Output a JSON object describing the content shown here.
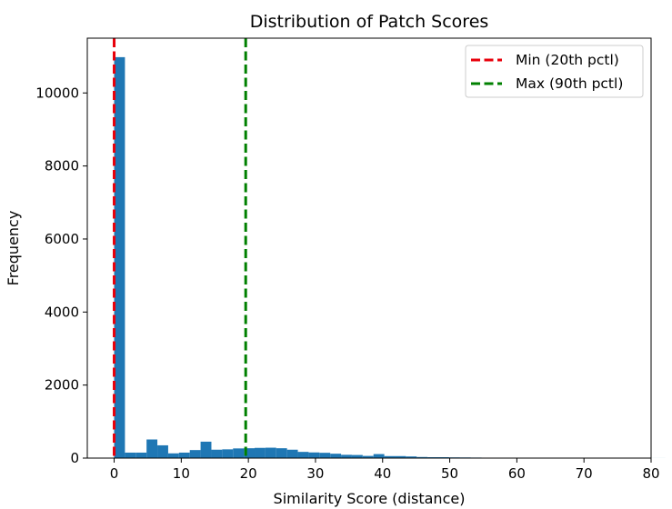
{
  "chart_data": {
    "type": "histogram",
    "title": "Distribution of Patch Scores",
    "xlabel": "Similarity Score (distance)",
    "ylabel": "Frequency",
    "xlim": [
      -4,
      80
    ],
    "ylim": [
      0,
      11500
    ],
    "xticks": [
      0,
      10,
      20,
      30,
      40,
      50,
      60,
      70,
      80
    ],
    "yticks": [
      0,
      2000,
      4000,
      6000,
      8000,
      10000
    ],
    "bin_width": 1.61,
    "bins_start": 0,
    "bar_color": "#1f77b4",
    "counts": [
      10980,
      150,
      150,
      510,
      350,
      130,
      150,
      220,
      450,
      230,
      240,
      265,
      270,
      280,
      285,
      270,
      230,
      170,
      155,
      145,
      120,
      90,
      85,
      60,
      110,
      55,
      55,
      45,
      30,
      25,
      25,
      20,
      18,
      15,
      12,
      12,
      10,
      8,
      6,
      5,
      4,
      3,
      3,
      2,
      2,
      2,
      1,
      1,
      1,
      1,
      1,
      0,
      1
    ],
    "reference_lines": [
      {
        "label": "Min (20th pctl)",
        "x": 0.0,
        "color": "#e8000b",
        "style": "dashed"
      },
      {
        "label": "Max (90th pctl)",
        "x": 19.6,
        "color": "#008000",
        "style": "dashed"
      }
    ],
    "legend_position": "top-right",
    "grid": false
  }
}
